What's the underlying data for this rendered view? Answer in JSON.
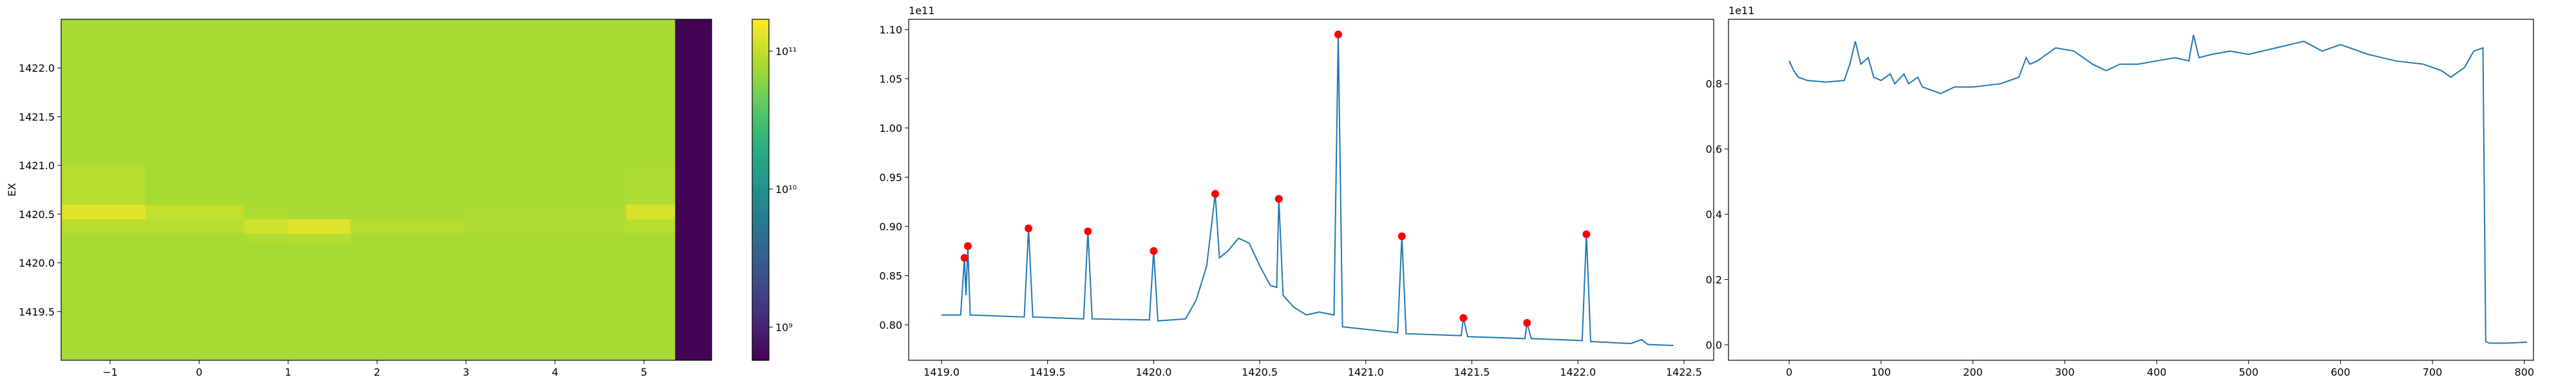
{
  "chart_data": [
    {
      "type": "heatmap",
      "ylabel": "EX",
      "colormap": "viridis",
      "color_scale": "log",
      "xedges": [
        -1.55,
        -0.6,
        0.5,
        1.0,
        1.7,
        3.0,
        4.8,
        5.35,
        5.76
      ],
      "yedges": [
        1419.0,
        1420.2,
        1420.3,
        1420.45,
        1420.6,
        1421.0,
        1422.5
      ],
      "z": [
        [
          80000000000.0,
          80000000000.0,
          80000000000.0,
          80000000000.0,
          80000000000.0,
          80000000000.0,
          80000000000.0,
          600000000.0
        ],
        [
          80000000000.0,
          80000000000.0,
          85000000000.0,
          90000000000.0,
          80000000000.0,
          80000000000.0,
          80000000000.0,
          600000000.0
        ],
        [
          90000000000.0,
          90000000000.0,
          110000000000.0,
          130000000000.0,
          90000000000.0,
          85000000000.0,
          90000000000.0,
          600000000.0
        ],
        [
          130000000000.0,
          100000000000.0,
          85000000000.0,
          80000000000.0,
          80000000000.0,
          85000000000.0,
          120000000000.0,
          600000000.0
        ],
        [
          90000000000.0,
          80000000000.0,
          80000000000.0,
          80000000000.0,
          80000000000.0,
          80000000000.0,
          85000000000.0,
          600000000.0
        ],
        [
          80000000000.0,
          80000000000.0,
          80000000000.0,
          80000000000.0,
          80000000000.0,
          80000000000.0,
          80000000000.0,
          600000000.0
        ]
      ],
      "clim": [
        575000000.0,
        170000000000.0
      ],
      "xlim": [
        -1.55,
        5.76
      ],
      "ylim": [
        1419.0,
        1422.5
      ],
      "xticks": [
        {
          "value": -1,
          "label": "−1"
        },
        0,
        1,
        2,
        3,
        4,
        5
      ],
      "yticks": [
        1419.5,
        {
          "value": 1420,
          "label": "1420.0"
        },
        1420.5,
        {
          "value": 1421,
          "label": "1421.0"
        },
        1421.5,
        {
          "value": 1422,
          "label": "1422.0"
        }
      ],
      "colorbar_ticks": [
        {
          "value": 1000000000.0,
          "label": "10⁹"
        },
        {
          "value": 10000000000.0,
          "label": "10¹⁰"
        },
        {
          "value": 100000000000.0,
          "label": "10¹¹"
        }
      ]
    },
    {
      "type": "line",
      "offset_text": "1e11",
      "line": {
        "color": "#1f77b4",
        "x": [
          1419.0,
          1419.09,
          1419.108,
          1419.115,
          1419.124,
          1419.135,
          1419.39,
          1419.41,
          1419.43,
          1419.67,
          1419.69,
          1419.71,
          1419.98,
          1420.0,
          1420.02,
          1420.15,
          1420.2,
          1420.25,
          1420.29,
          1420.31,
          1420.35,
          1420.4,
          1420.45,
          1420.5,
          1420.55,
          1420.58,
          1420.59,
          1420.61,
          1420.66,
          1420.72,
          1420.78,
          1420.85,
          1420.87,
          1420.89,
          1421.15,
          1421.17,
          1421.19,
          1421.45,
          1421.46,
          1421.48,
          1421.75,
          1421.76,
          1421.78,
          1422.02,
          1422.04,
          1422.06,
          1422.25,
          1422.3,
          1422.33,
          1422.45
        ],
        "y": [
          0.81,
          0.81,
          0.868,
          0.83,
          0.88,
          0.81,
          0.808,
          0.898,
          0.808,
          0.806,
          0.895,
          0.806,
          0.805,
          0.875,
          0.804,
          0.806,
          0.825,
          0.86,
          0.933,
          0.868,
          0.875,
          0.888,
          0.883,
          0.86,
          0.84,
          0.838,
          0.928,
          0.83,
          0.818,
          0.81,
          0.813,
          0.81,
          1.095,
          0.798,
          0.792,
          0.89,
          0.791,
          0.789,
          0.807,
          0.788,
          0.786,
          0.802,
          0.786,
          0.784,
          0.892,
          0.783,
          0.781,
          0.785,
          0.78,
          0.779
        ]
      },
      "peaks": {
        "color": "#ff0000",
        "x": [
          1419.108,
          1419.124,
          1419.41,
          1419.69,
          1420.0,
          1420.29,
          1420.59,
          1420.87,
          1421.17,
          1421.46,
          1421.76,
          1422.04
        ],
        "y": [
          0.868,
          0.88,
          0.898,
          0.895,
          0.875,
          0.933,
          0.928,
          1.095,
          0.89,
          0.807,
          0.802,
          0.892
        ]
      },
      "xlim": [
        1418.845,
        1422.64
      ],
      "ylim": [
        0.764,
        1.1104
      ],
      "xticks": [
        {
          "value": 1419,
          "label": "1419.0"
        },
        1419.5,
        {
          "value": 1420,
          "label": "1420.0"
        },
        1420.5,
        {
          "value": 1421,
          "label": "1421.0"
        },
        1421.5,
        {
          "value": 1422,
          "label": "1422.0"
        },
        1422.5
      ],
      "yticks": [
        {
          "value": 0.8,
          "label": "0.80"
        },
        0.85,
        {
          "value": 0.9,
          "label": "0.90"
        },
        0.95,
        {
          "value": 1.0,
          "label": "1.00"
        },
        1.05,
        {
          "value": 1.1,
          "label": "1.10"
        }
      ]
    },
    {
      "type": "line",
      "offset_text": "1e11",
      "line": {
        "color": "#1f77b4",
        "x": [
          0,
          5,
          10,
          20,
          40,
          60,
          66,
          72,
          78,
          82,
          86,
          92,
          100,
          110,
          115,
          125,
          130,
          140,
          145,
          155,
          165,
          180,
          200,
          230,
          250,
          258,
          262,
          270,
          290,
          310,
          330,
          345,
          360,
          380,
          400,
          420,
          435,
          440,
          446,
          460,
          480,
          500,
          530,
          560,
          580,
          600,
          630,
          660,
          690,
          710,
          720,
          735,
          745,
          755,
          758,
          762,
          780,
          803
        ],
        "y": [
          0.87,
          0.84,
          0.82,
          0.81,
          0.805,
          0.81,
          0.86,
          0.93,
          0.86,
          0.87,
          0.88,
          0.82,
          0.81,
          0.83,
          0.8,
          0.83,
          0.8,
          0.82,
          0.79,
          0.78,
          0.77,
          0.79,
          0.79,
          0.8,
          0.82,
          0.88,
          0.86,
          0.87,
          0.91,
          0.9,
          0.86,
          0.84,
          0.86,
          0.86,
          0.87,
          0.88,
          0.87,
          0.95,
          0.88,
          0.89,
          0.9,
          0.89,
          0.91,
          0.93,
          0.9,
          0.92,
          0.89,
          0.87,
          0.86,
          0.84,
          0.82,
          0.85,
          0.9,
          0.91,
          0.01,
          0.005,
          0.005,
          0.008
        ]
      },
      "xlim": [
        -66,
        810
      ],
      "ylim": [
        -0.0475,
        0.9975
      ],
      "xticks": [
        0,
        100,
        200,
        300,
        400,
        500,
        600,
        700,
        800
      ],
      "yticks": [
        {
          "value": 0,
          "label": "0.0"
        },
        0.2,
        0.4,
        0.6,
        0.8
      ]
    }
  ]
}
